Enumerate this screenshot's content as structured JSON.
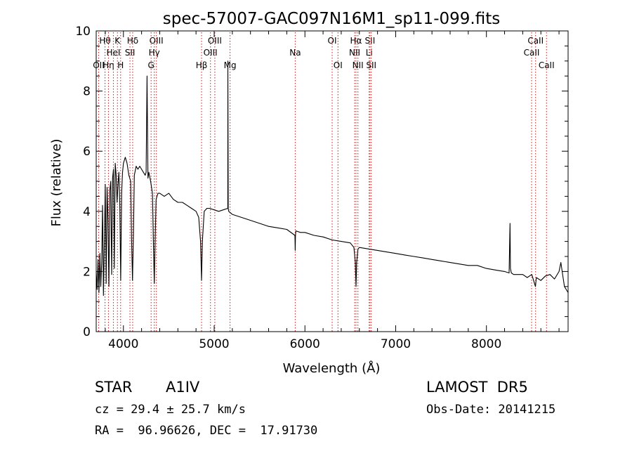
{
  "chart_data": {
    "type": "line",
    "title": "spec-57007-GAC097N16M1_sp11-099.fits",
    "xlabel": "Wavelength (Å)",
    "ylabel": "Flux (relative)",
    "xlim": [
      3700,
      8900
    ],
    "ylim": [
      0,
      10
    ],
    "x_ticks": [
      4000,
      5000,
      6000,
      7000,
      8000
    ],
    "y_ticks": [
      0,
      2,
      4,
      6,
      8,
      10
    ],
    "grid": false,
    "line_color": "#000000",
    "marker_color": "#b22222",
    "series": [
      {
        "x": [
          3700,
          3710,
          3720,
          3730,
          3740,
          3750,
          3760,
          3770,
          3780,
          3790,
          3800,
          3810,
          3820,
          3830,
          3840,
          3850,
          3860,
          3870,
          3880,
          3890,
          3900,
          3910,
          3920,
          3930,
          3940,
          3950,
          3960,
          3970,
          3980,
          3990,
          4000,
          4020,
          4040,
          4060,
          4080,
          4090,
          4100,
          4110,
          4120,
          4140,
          4160,
          4180,
          4200,
          4220,
          4240,
          4250,
          4260,
          4270,
          4280,
          4300,
          4320,
          4330,
          4340,
          4350,
          4360,
          4380,
          4400,
          4450,
          4500,
          4550,
          4600,
          4650,
          4700,
          4750,
          4800,
          4830,
          4850,
          4861,
          4870,
          4890,
          4920,
          4950,
          5000,
          5050,
          5100,
          5150,
          5151,
          5155,
          5160,
          5200,
          5300,
          5400,
          5500,
          5600,
          5700,
          5800,
          5890,
          5893,
          5896,
          5900,
          5950,
          6000,
          6100,
          6200,
          6300,
          6400,
          6500,
          6540,
          6555,
          6563,
          6570,
          6585,
          6600,
          6700,
          6800,
          6900,
          7000,
          7100,
          7200,
          7300,
          7400,
          7500,
          7600,
          7700,
          7800,
          7900,
          8000,
          8100,
          8200,
          8250,
          8260,
          8265,
          8275,
          8300,
          8400,
          8450,
          8500,
          8540,
          8550,
          8600,
          8650,
          8700,
          8750,
          8800,
          8820,
          8840,
          8860,
          8880,
          8900
        ],
        "y": [
          2.0,
          1.4,
          2.4,
          1.3,
          2.6,
          1.5,
          2.3,
          4.2,
          1.2,
          3.0,
          4.9,
          1.6,
          4.8,
          3.7,
          1.5,
          4.7,
          5.0,
          1.9,
          5.1,
          5.4,
          2.1,
          5.6,
          5.2,
          4.3,
          4.9,
          5.3,
          4.2,
          1.7,
          4.6,
          5.3,
          5.6,
          5.8,
          5.6,
          5.2,
          5.0,
          3.0,
          1.7,
          3.2,
          5.2,
          5.5,
          5.4,
          5.5,
          5.4,
          5.3,
          5.2,
          5.3,
          8.5,
          5.1,
          5.3,
          5.0,
          4.6,
          3.0,
          1.6,
          3.1,
          4.4,
          4.6,
          4.6,
          4.5,
          4.6,
          4.4,
          4.3,
          4.3,
          4.2,
          4.1,
          4.0,
          3.8,
          3.0,
          1.7,
          3.0,
          4.0,
          4.1,
          4.1,
          4.05,
          4.0,
          4.05,
          4.1,
          9.0,
          4.1,
          4.0,
          3.9,
          3.8,
          3.7,
          3.6,
          3.5,
          3.45,
          3.4,
          3.2,
          2.7,
          3.2,
          3.35,
          3.3,
          3.3,
          3.2,
          3.15,
          3.05,
          3.0,
          2.95,
          2.8,
          2.3,
          1.5,
          2.3,
          2.75,
          2.8,
          2.75,
          2.7,
          2.65,
          2.6,
          2.55,
          2.5,
          2.45,
          2.4,
          2.35,
          2.3,
          2.25,
          2.2,
          2.2,
          2.1,
          2.05,
          2.0,
          1.95,
          3.6,
          2.1,
          1.95,
          1.9,
          1.9,
          1.8,
          1.9,
          1.5,
          1.8,
          1.7,
          1.85,
          1.9,
          1.75,
          2.0,
          2.3,
          1.9,
          1.5,
          1.4,
          1.3
        ]
      }
    ],
    "lines": [
      {
        "label": "OII",
        "x": 3727,
        "row": 3
      },
      {
        "label": "Hθ",
        "x": 3797,
        "row": 1
      },
      {
        "label": "Hη",
        "x": 3835,
        "row": 3
      },
      {
        "label": "HeI",
        "x": 3889,
        "row": 2
      },
      {
        "label": "K",
        "x": 3934,
        "row": 1
      },
      {
        "label": "H",
        "x": 3969,
        "row": 3
      },
      {
        "label": "Hδ",
        "x": 4102,
        "row": 1
      },
      {
        "label": "SII",
        "x": 4072,
        "row": 2
      },
      {
        "label": "OIII",
        "x": 4363,
        "row": 1
      },
      {
        "label": "Hγ",
        "x": 4340,
        "row": 2
      },
      {
        "label": "G",
        "x": 4305,
        "row": 3
      },
      {
        "label": "Hβ",
        "x": 4861,
        "row": 3
      },
      {
        "label": "OIII",
        "x": 5007,
        "row": 1
      },
      {
        "label": "OIII",
        "x": 4959,
        "row": 2
      },
      {
        "label": "Mg",
        "x": 5175,
        "row": 3
      },
      {
        "label": "Na",
        "x": 5893,
        "row": 2
      },
      {
        "label": "OI",
        "x": 6300,
        "row": 1
      },
      {
        "label": "OI",
        "x": 6364,
        "row": 3
      },
      {
        "label": "Hα",
        "x": 6563,
        "row": 1
      },
      {
        "label": "NII",
        "x": 6548,
        "row": 2
      },
      {
        "label": "NII",
        "x": 6584,
        "row": 3
      },
      {
        "label": "SII",
        "x": 6717,
        "row": 1
      },
      {
        "label": "Li",
        "x": 6708,
        "row": 2
      },
      {
        "label": "SII",
        "x": 6731,
        "row": 3
      },
      {
        "label": "CaII",
        "x": 8542,
        "row": 1
      },
      {
        "label": "CaII",
        "x": 8498,
        "row": 2
      },
      {
        "label": "CaII",
        "x": 8662,
        "row": 3
      }
    ]
  },
  "info": {
    "object_class": "STAR",
    "subclass": "A1IV",
    "survey": "LAMOST  DR5",
    "cz": "cz = 29.4 ± 25.7 km/s",
    "obs_date": "Obs-Date: 20141215",
    "coords": "RA =  96.96626, DEC =  17.91730"
  }
}
